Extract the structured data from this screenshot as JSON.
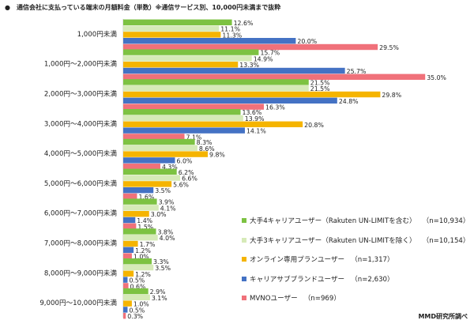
{
  "title": "●　通信会社に支払っている端末の月額料金（単数）※通信サービス別、10,000円未満まで抜粋",
  "source": "MMD研究所調べ",
  "chart_data": {
    "type": "bar",
    "orientation": "horizontal",
    "categories": [
      "1,000円未満",
      "1,000円～2,000円未満",
      "2,000円～3,000円未満",
      "3,000円～4,000円未満",
      "4,000円～5,000円未満",
      "5,000円～6,000円未満",
      "6,000円～7,000円未満",
      "7,000円～8,000円未満",
      "8,000円～9,000円未満",
      "9,000円～10,000円未満"
    ],
    "series": [
      {
        "name": "大手4キャリアユーザー（Rakuten UN-LIMITを含む）",
        "n": "（n=10,934）",
        "color": "#7dc242",
        "values": [
          12.6,
          15.7,
          21.5,
          13.6,
          8.3,
          6.2,
          3.9,
          3.8,
          3.3,
          2.9
        ]
      },
      {
        "name": "大手3キャリアユーザー（Rakuten UN-LIMITを除く）",
        "n": "（n=10,154）",
        "color": "#d6eab8",
        "values": [
          11.1,
          14.9,
          21.5,
          13.9,
          8.6,
          6.6,
          4.1,
          4.0,
          3.5,
          3.1
        ]
      },
      {
        "name": "オンライン専用プランユーザー",
        "n": "（n=1,317）",
        "color": "#f5b400",
        "values": [
          11.3,
          13.3,
          29.8,
          20.8,
          9.8,
          5.6,
          3.0,
          1.7,
          1.2,
          1.0
        ]
      },
      {
        "name": "キャリアサブブランドユーザー",
        "n": "（n=2,630）",
        "color": "#4472c4",
        "values": [
          20.0,
          25.7,
          24.8,
          14.1,
          6.0,
          3.5,
          1.4,
          1.2,
          0.5,
          0.5
        ]
      },
      {
        "name": "MVNOユーザー",
        "n": "（n=969）",
        "color": "#f0717a",
        "values": [
          29.5,
          35.0,
          16.3,
          7.1,
          4.3,
          1.6,
          1.5,
          1.0,
          0.6,
          0.3
        ]
      }
    ],
    "xlim": [
      0,
      40
    ],
    "value_suffix": "%",
    "grid": false,
    "legend_position": "bottom-right"
  }
}
